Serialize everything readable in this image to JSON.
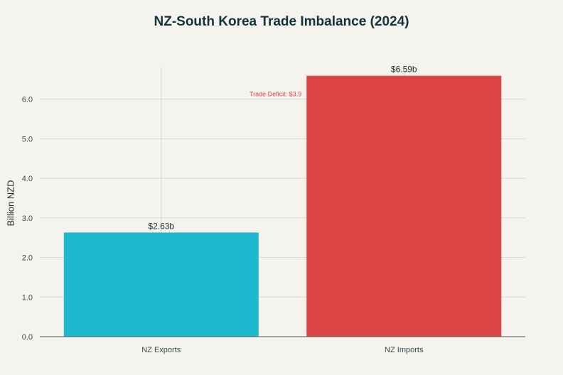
{
  "chart_data": {
    "type": "bar",
    "title": "NZ-South Korea Trade Imbalance (2024)",
    "xlabel": "",
    "ylabel": "Billion NZD",
    "categories": [
      "NZ Exports",
      "NZ Imports"
    ],
    "values": [
      2.63,
      6.59
    ],
    "data_labels": [
      "$2.63b",
      "$6.59b"
    ],
    "bar_colors": [
      "#1fb8cd",
      "#db4545"
    ],
    "ylim": [
      0,
      6.8
    ],
    "yticks": [
      "0.0",
      "1.0",
      "2.0",
      "3.0",
      "4.0",
      "5.0",
      "6.0"
    ],
    "grid": true,
    "annotation": {
      "text": "Trade Deficit: $3.9",
      "color": "#db4545",
      "y": 6.0
    }
  }
}
